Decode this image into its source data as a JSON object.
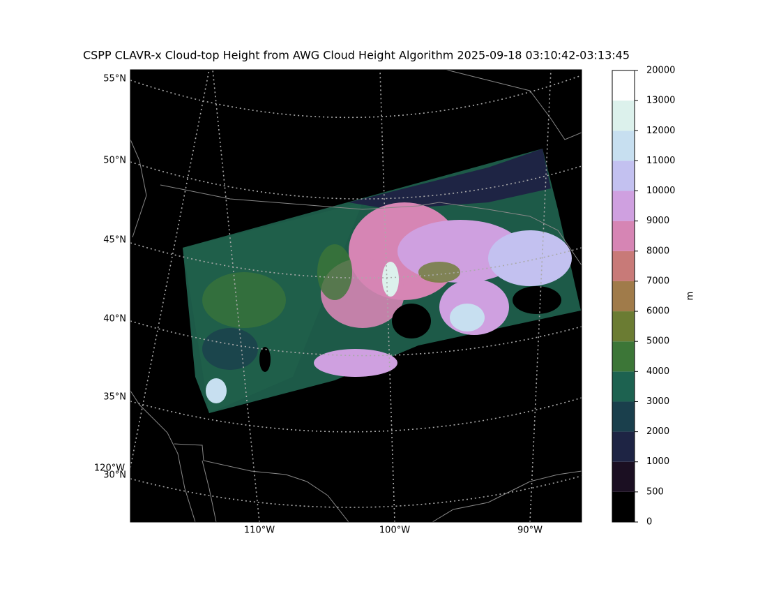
{
  "title": "CSPP CLAVR-x Cloud-top Height from AWG Cloud Height Algorithm 2025-09-18 03:10:42-03:13:45",
  "latitude_labels": [
    "55°N",
    "50°N",
    "45°N",
    "40°N",
    "35°N",
    "30°N"
  ],
  "longitude_labels": [
    "120°W",
    "110°W",
    "100°W",
    "90°W"
  ],
  "colorbar": {
    "label": "m",
    "ticks": [
      0,
      500,
      1000,
      2000,
      3000,
      4000,
      5000,
      6000,
      7000,
      8000,
      9000,
      10000,
      11000,
      12000,
      13000,
      20000
    ],
    "colors": [
      "#000000",
      "#1b0f22",
      "#1e2444",
      "#1a3f4c",
      "#1d6250",
      "#3c7637",
      "#6b7c33",
      "#a07b4a",
      "#c87a78",
      "#d685b4",
      "#cfa0e0",
      "#c3c1f0",
      "#c7dff0",
      "#dcf1ec",
      "#ffffff"
    ]
  }
}
